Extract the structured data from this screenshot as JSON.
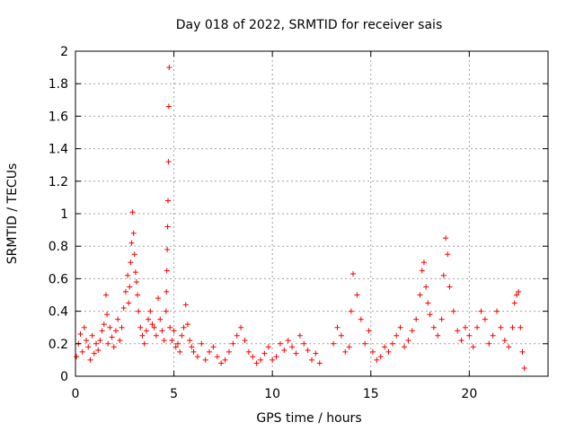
{
  "chart_data": {
    "type": "scatter",
    "title": "Day 018 of 2022, SRMTID for receiver sais",
    "xlabel": "GPS time / hours",
    "ylabel": "SRMTID / TECUs",
    "xlim": [
      0,
      24
    ],
    "ylim": [
      0,
      2
    ],
    "xticks": [
      0,
      5,
      10,
      15,
      20
    ],
    "xtick_labels": [
      "0",
      "5",
      "10",
      "15",
      "20"
    ],
    "yticks": [
      0,
      0.2,
      0.4,
      0.6,
      0.8,
      1,
      1.2,
      1.4,
      1.6,
      1.8,
      2
    ],
    "ytick_labels": [
      "0",
      "0.2",
      "0.4",
      "0.6",
      "0.8",
      "1",
      "1.2",
      "1.4",
      "1.6",
      "1.8",
      "2"
    ],
    "grid": true,
    "marker": "+",
    "color": "#ff0000",
    "series": [
      {
        "name": "SRMTID",
        "x": [
          0.05,
          0.15,
          0.25,
          0.35,
          0.45,
          0.55,
          0.65,
          0.75,
          0.85,
          0.95,
          1.05,
          1.15,
          1.25,
          1.35,
          1.45,
          1.55,
          1.6,
          1.65,
          1.75,
          1.85,
          1.95,
          2.05,
          2.15,
          2.25,
          2.35,
          2.45,
          2.55,
          2.65,
          2.7,
          2.75,
          2.8,
          2.85,
          2.9,
          2.95,
          3.0,
          3.05,
          3.1,
          3.15,
          3.2,
          3.3,
          3.4,
          3.5,
          3.6,
          3.7,
          3.8,
          3.9,
          4.0,
          4.1,
          4.2,
          4.3,
          4.4,
          4.5,
          4.6,
          4.62,
          4.64,
          4.66,
          4.68,
          4.7,
          4.72,
          4.74,
          4.76,
          4.8,
          4.9,
          5.0,
          5.1,
          5.2,
          5.3,
          5.4,
          5.5,
          5.6,
          5.7,
          5.8,
          5.9,
          6.0,
          6.2,
          6.4,
          6.6,
          6.8,
          7.0,
          7.2,
          7.4,
          7.6,
          7.8,
          8.0,
          8.2,
          8.4,
          8.6,
          8.8,
          9.0,
          9.2,
          9.4,
          9.6,
          9.8,
          10.0,
          10.2,
          10.4,
          10.6,
          10.8,
          11.0,
          11.2,
          11.4,
          11.6,
          11.8,
          12.0,
          12.2,
          12.4,
          13.1,
          13.3,
          13.5,
          13.7,
          13.9,
          14.0,
          14.1,
          14.3,
          14.5,
          14.7,
          14.9,
          15.1,
          15.3,
          15.5,
          15.7,
          15.9,
          16.1,
          16.3,
          16.5,
          16.7,
          16.9,
          17.1,
          17.3,
          17.5,
          17.6,
          17.7,
          17.8,
          17.9,
          18.0,
          18.2,
          18.4,
          18.6,
          18.7,
          18.8,
          18.9,
          19.0,
          19.2,
          19.4,
          19.6,
          19.8,
          20.0,
          20.2,
          20.4,
          20.6,
          20.8,
          21.0,
          21.2,
          21.4,
          21.6,
          21.8,
          22.0,
          22.2,
          22.3,
          22.4,
          22.5,
          22.6,
          22.7,
          22.8
        ],
        "y": [
          0.12,
          0.2,
          0.26,
          0.15,
          0.3,
          0.22,
          0.18,
          0.1,
          0.25,
          0.14,
          0.2,
          0.16,
          0.22,
          0.28,
          0.32,
          0.5,
          0.38,
          0.2,
          0.3,
          0.24,
          0.18,
          0.28,
          0.35,
          0.22,
          0.3,
          0.42,
          0.52,
          0.62,
          0.45,
          0.55,
          0.7,
          0.82,
          1.01,
          0.88,
          0.75,
          0.64,
          0.58,
          0.5,
          0.4,
          0.3,
          0.25,
          0.2,
          0.28,
          0.35,
          0.4,
          0.32,
          0.3,
          0.25,
          0.48,
          0.35,
          0.28,
          0.22,
          0.4,
          0.52,
          0.65,
          0.78,
          0.92,
          1.08,
          1.32,
          1.66,
          1.9,
          0.3,
          0.22,
          0.28,
          0.18,
          0.2,
          0.15,
          0.25,
          0.3,
          0.44,
          0.32,
          0.22,
          0.18,
          0.15,
          0.12,
          0.2,
          0.1,
          0.15,
          0.18,
          0.12,
          0.08,
          0.1,
          0.15,
          0.2,
          0.25,
          0.3,
          0.22,
          0.15,
          0.12,
          0.08,
          0.1,
          0.14,
          0.18,
          0.1,
          0.12,
          0.2,
          0.16,
          0.22,
          0.18,
          0.14,
          0.25,
          0.2,
          0.16,
          0.1,
          0.14,
          0.08,
          0.2,
          0.3,
          0.25,
          0.15,
          0.18,
          0.4,
          0.63,
          0.5,
          0.35,
          0.2,
          0.28,
          0.15,
          0.1,
          0.12,
          0.18,
          0.15,
          0.2,
          0.25,
          0.3,
          0.18,
          0.22,
          0.28,
          0.35,
          0.5,
          0.65,
          0.7,
          0.55,
          0.45,
          0.38,
          0.3,
          0.25,
          0.35,
          0.62,
          0.85,
          0.75,
          0.55,
          0.4,
          0.28,
          0.22,
          0.3,
          0.25,
          0.18,
          0.3,
          0.4,
          0.35,
          0.2,
          0.25,
          0.4,
          0.3,
          0.22,
          0.18,
          0.3,
          0.45,
          0.5,
          0.52,
          0.3,
          0.15,
          0.05
        ]
      }
    ]
  }
}
